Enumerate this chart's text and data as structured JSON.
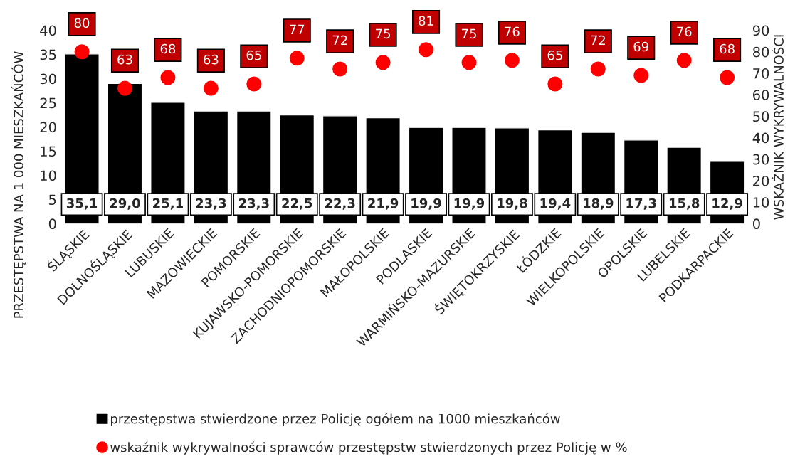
{
  "chart_data": {
    "type": "bar",
    "ylabel": "PRZESTĘPSTWA NA 1 000 MIESZKAŃCÓW",
    "y2label": "WSKAŹNIK WYKRYWALNOŚCI",
    "categories": [
      "ŚLĄSKIE",
      "DOLNOŚLĄSKIE",
      "LUBUSKIE",
      "MAZOWIECKIE",
      "POMORSKIE",
      "KUJAWSKO-POMORSKIE",
      "ZACHODNIOPOMORSKIE",
      "MAŁOPOLSKIE",
      "PODLASKIE",
      "WARMIŃSKO-MAZURSKIE",
      "ŚWIĘTOKRZYSKIE",
      "ŁÓDZKIE",
      "WIELKOPOLSKIE",
      "OPOLSKIE",
      "LUBELSKIE",
      "PODKARPACKIE"
    ],
    "series": [
      {
        "name": "przestępstwa stwierdzone przez Policję ogółem na 1000 mieszkańców",
        "color": "#000000",
        "values": [
          35.1,
          29.0,
          25.1,
          23.3,
          23.3,
          22.5,
          22.3,
          21.9,
          19.9,
          19.9,
          19.8,
          19.4,
          18.9,
          17.3,
          15.8,
          12.9
        ],
        "value_labels": [
          "35,1",
          "29,0",
          "25,1",
          "23,3",
          "23,3",
          "22,5",
          "22,3",
          "21,9",
          "19,9",
          "19,9",
          "19,8",
          "19,4",
          "18,9",
          "17,3",
          "15,8",
          "12,9"
        ]
      },
      {
        "name": "wskaźnik wykrywalności sprawców przestępstw stwierdzonych przez Policję w %",
        "type": "scatter",
        "axis": "y2",
        "color": "#ff0000",
        "marker": "circle",
        "values": [
          80,
          63,
          68,
          63,
          65,
          77,
          72,
          75,
          81,
          75,
          76,
          65,
          72,
          69,
          76,
          68
        ],
        "value_labels": [
          "80",
          "63",
          "68",
          "63",
          "65",
          "77",
          "72",
          "75",
          "81",
          "75",
          "76",
          "65",
          "72",
          "69",
          "76",
          "68"
        ]
      }
    ],
    "ylim": [
      0,
      40
    ],
    "yticks": [
      0,
      5,
      10,
      15,
      20,
      25,
      30,
      35,
      40
    ],
    "y2lim": [
      0,
      90
    ],
    "y2ticks": [
      0,
      10,
      20,
      30,
      40,
      50,
      60,
      70,
      80,
      90
    ],
    "grid": false,
    "legend": "bottom"
  }
}
